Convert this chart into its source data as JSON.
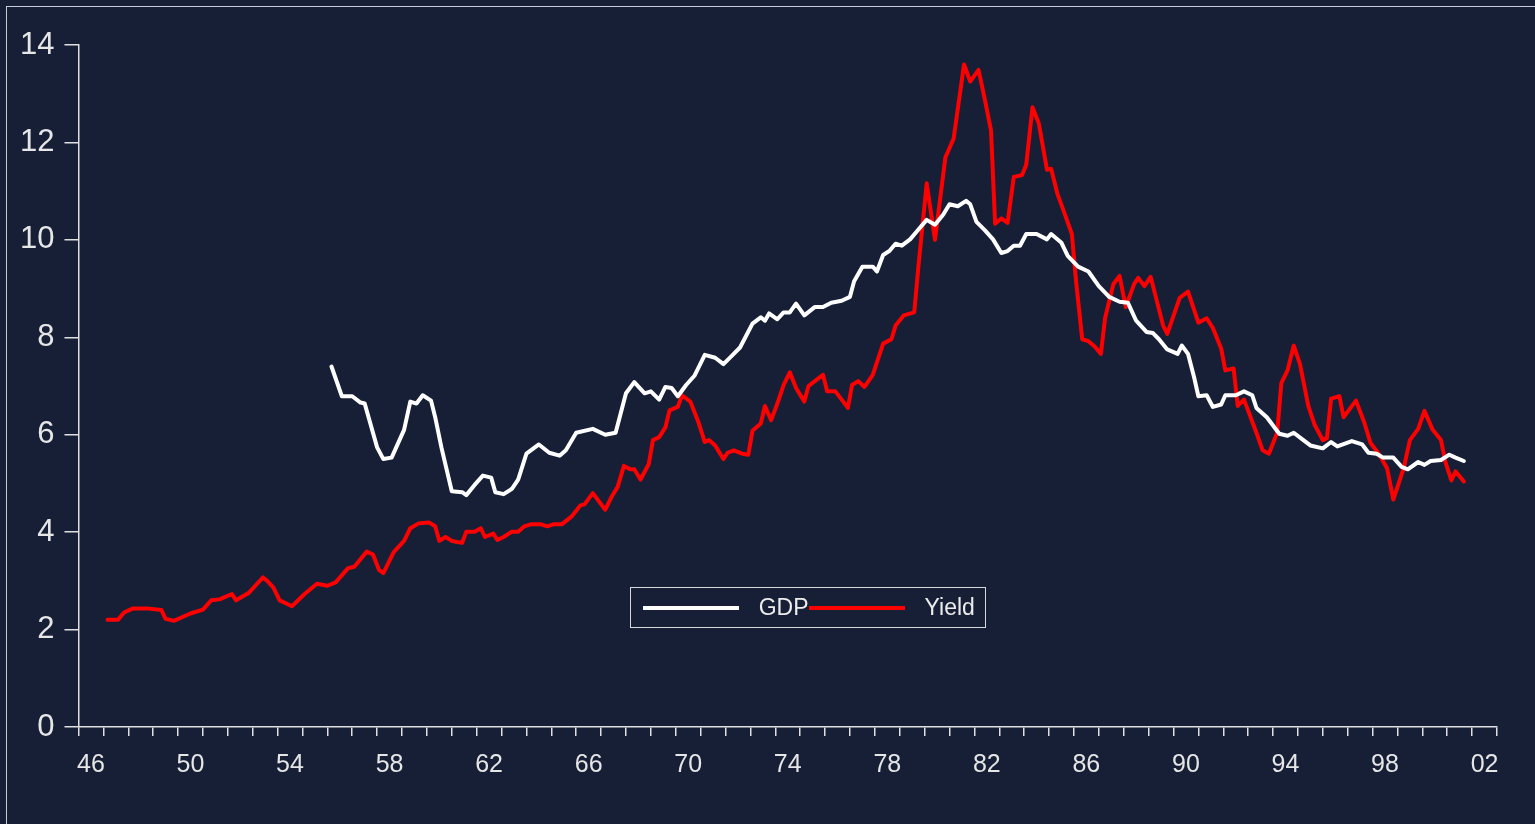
{
  "chart_data": {
    "type": "line",
    "xlim": [
      "1946",
      "2003"
    ],
    "ylim": [
      0,
      14
    ],
    "yticks": [
      0,
      2,
      4,
      6,
      8,
      10,
      12,
      14
    ],
    "xticks": [
      {
        "value": "1946",
        "label": null
      },
      {
        "value": "1947",
        "label": null
      },
      {
        "value": "1948",
        "label": null
      },
      {
        "value": "1949",
        "label": null
      },
      {
        "value": "1950",
        "label": null
      },
      {
        "value": "1951",
        "label": null
      },
      {
        "value": "1952",
        "label": null
      },
      {
        "value": "1953",
        "label": null
      },
      {
        "value": "1954",
        "label": null
      },
      {
        "value": "1955",
        "label": null
      },
      {
        "value": "1956",
        "label": null
      },
      {
        "value": "1957",
        "label": null
      },
      {
        "value": "1958",
        "label": null
      },
      {
        "value": "1959",
        "label": null
      },
      {
        "value": "1960",
        "label": null
      },
      {
        "value": "1961",
        "label": null
      },
      {
        "value": "1962",
        "label": null
      },
      {
        "value": "1963",
        "label": null
      },
      {
        "value": "1964",
        "label": null
      },
      {
        "value": "1965",
        "label": null
      },
      {
        "value": "1966",
        "label": null
      },
      {
        "value": "1967",
        "label": null
      },
      {
        "value": "1968",
        "label": null
      },
      {
        "value": "1969",
        "label": null
      },
      {
        "value": "1970",
        "label": null
      },
      {
        "value": "1971",
        "label": null
      },
      {
        "value": "1972",
        "label": null
      },
      {
        "value": "1973",
        "label": null
      },
      {
        "value": "1974",
        "label": null
      },
      {
        "value": "1975",
        "label": null
      },
      {
        "value": "1976",
        "label": null
      },
      {
        "value": "1977",
        "label": null
      },
      {
        "value": "1978",
        "label": null
      },
      {
        "value": "1979",
        "label": null
      },
      {
        "value": "1980",
        "label": null
      },
      {
        "value": "1981",
        "label": null
      },
      {
        "value": "1982",
        "label": null
      },
      {
        "value": "1983",
        "label": null
      },
      {
        "value": "1984",
        "label": null
      },
      {
        "value": "1985",
        "label": null
      },
      {
        "value": "1986",
        "label": null
      },
      {
        "value": "1987",
        "label": null
      },
      {
        "value": "1988",
        "label": null
      },
      {
        "value": "1989",
        "label": null
      },
      {
        "value": "1990",
        "label": null
      },
      {
        "value": "1991",
        "label": null
      },
      {
        "value": "1992",
        "label": null
      },
      {
        "value": "1993",
        "label": null
      },
      {
        "value": "1994",
        "label": null
      },
      {
        "value": "1995",
        "label": null
      },
      {
        "value": "1996",
        "label": null
      },
      {
        "value": "1997",
        "label": null
      },
      {
        "value": "1998",
        "label": null
      },
      {
        "value": "1999",
        "label": null
      },
      {
        "value": "2000",
        "label": null
      },
      {
        "value": "2001",
        "label": null
      },
      {
        "value": "2002",
        "label": null
      },
      {
        "value": "2003",
        "label": null
      },
      {
        "value": "1946-07",
        "label": "46"
      },
      {
        "value": "1950-07",
        "label": "50"
      },
      {
        "value": "1954-07",
        "label": "54"
      },
      {
        "value": "1958-07",
        "label": "58"
      },
      {
        "value": "1962-07",
        "label": "62"
      },
      {
        "value": "1966-07",
        "label": "66"
      },
      {
        "value": "1970-07",
        "label": "70"
      },
      {
        "value": "1974-07",
        "label": "74"
      },
      {
        "value": "1978-07",
        "label": "78"
      },
      {
        "value": "1982-07",
        "label": "82"
      },
      {
        "value": "1986-07",
        "label": "86"
      },
      {
        "value": "1990-07",
        "label": "90"
      },
      {
        "value": "1994-07",
        "label": "94"
      },
      {
        "value": "1998-07",
        "label": "98"
      },
      {
        "value": "2002-07",
        "label": "02"
      }
    ],
    "legend": "bottom",
    "marker": "none",
    "line_style": "solid",
    "series": [
      {
        "name": "GDP",
        "color": "#ffffff",
        "x": [
          "1956-03",
          "1956-08",
          "1957-01",
          "1957-05",
          "1957-07",
          "1958-01",
          "1958-04",
          "1958-08",
          "1959-02",
          "1959-05",
          "1959-08",
          "1959-11",
          "1960-03",
          "1960-05",
          "1960-08",
          "1961-01",
          "1961-06",
          "1961-08",
          "1961-12",
          "1962-04",
          "1962-08",
          "1962-10",
          "1963-02",
          "1963-06",
          "1963-09",
          "1964-01",
          "1964-07",
          "1964-12",
          "1965-05",
          "1965-08",
          "1966-01",
          "1966-09",
          "1967-03",
          "1967-08",
          "1968-01",
          "1968-05",
          "1968-10",
          "1969-01",
          "1969-05",
          "1969-08",
          "1969-11",
          "1970-02",
          "1970-06",
          "1970-10",
          "1971-03",
          "1971-08",
          "1971-12",
          "1972-04",
          "1972-08",
          "1973-02",
          "1973-06",
          "1973-08",
          "1973-10",
          "1974-02",
          "1974-05",
          "1974-08",
          "1974-11",
          "1975-03",
          "1975-08",
          "1975-12",
          "1976-04",
          "1976-09",
          "1977-01",
          "1977-03",
          "1977-07",
          "1977-12",
          "1978-02",
          "1978-05",
          "1978-08",
          "1978-11",
          "1979-02",
          "1979-06",
          "1979-09",
          "1980-02",
          "1980-06",
          "1980-10",
          "1981-01",
          "1981-05",
          "1981-09",
          "1981-11",
          "1982-02",
          "1982-06",
          "1982-10",
          "1983-02",
          "1983-05",
          "1983-08",
          "1983-11",
          "1984-02",
          "1984-07",
          "1984-12",
          "1985-02",
          "1985-07",
          "1985-10",
          "1986-03",
          "1986-08",
          "1987-01",
          "1987-06",
          "1987-11",
          "1988-03",
          "1988-07",
          "1988-12",
          "1989-03",
          "1989-06",
          "1989-10",
          "1990-03",
          "1990-05",
          "1990-08",
          "1990-11",
          "1991-01",
          "1991-05",
          "1991-08",
          "1991-12",
          "1992-02",
          "1992-07",
          "1992-11",
          "1993-03",
          "1993-05",
          "1993-10",
          "1994-01",
          "1994-04",
          "1994-08",
          "1994-11",
          "1995-03",
          "1995-07",
          "1996-01",
          "1996-05",
          "1996-08",
          "1997-03",
          "1997-08",
          "1997-11",
          "1998-03",
          "1998-06",
          "1998-11",
          "1999-03",
          "1999-06",
          "1999-11",
          "2000-02",
          "2000-05",
          "2000-10",
          "2001-02",
          "2001-05",
          "2001-09"
        ],
        "values": [
          7.4,
          6.79,
          6.79,
          6.66,
          6.64,
          5.74,
          5.5,
          5.53,
          6.1,
          6.68,
          6.64,
          6.81,
          6.7,
          6.36,
          5.74,
          4.84,
          4.82,
          4.76,
          4.97,
          5.16,
          5.12,
          4.82,
          4.78,
          4.89,
          5.08,
          5.61,
          5.8,
          5.63,
          5.57,
          5.68,
          6.04,
          6.12,
          6.0,
          6.04,
          6.85,
          7.08,
          6.85,
          6.89,
          6.72,
          6.98,
          6.96,
          6.79,
          7.02,
          7.21,
          7.64,
          7.58,
          7.45,
          7.62,
          7.79,
          8.28,
          8.41,
          8.34,
          8.49,
          8.37,
          8.51,
          8.51,
          8.69,
          8.45,
          8.62,
          8.62,
          8.71,
          8.75,
          8.83,
          9.15,
          9.45,
          9.45,
          9.35,
          9.69,
          9.77,
          9.92,
          9.88,
          10.01,
          10.16,
          10.41,
          10.31,
          10.52,
          10.73,
          10.69,
          10.8,
          10.73,
          10.37,
          10.2,
          10.01,
          9.73,
          9.77,
          9.88,
          9.88,
          10.12,
          10.12,
          10.01,
          10.12,
          9.94,
          9.67,
          9.45,
          9.35,
          9.05,
          8.83,
          8.73,
          8.71,
          8.34,
          8.11,
          8.09,
          7.96,
          7.75,
          7.66,
          7.83,
          7.66,
          7.17,
          6.79,
          6.81,
          6.57,
          6.62,
          6.81,
          6.81,
          6.89,
          6.81,
          6.55,
          6.36,
          6.19,
          6.02,
          5.98,
          6.04,
          5.91,
          5.78,
          5.72,
          5.85,
          5.76,
          5.87,
          5.8,
          5.63,
          5.61,
          5.53,
          5.53,
          5.34,
          5.29,
          5.44,
          5.38,
          5.46,
          5.48,
          5.59,
          5.53,
          5.46
        ]
      },
      {
        "name": "Yield",
        "color": "#ff0000",
        "x": [
          "1947-03",
          "1947-08",
          "1947-11",
          "1948-03",
          "1948-11",
          "1949-05",
          "1949-07",
          "1949-11",
          "1950-07",
          "1951-01",
          "1951-05",
          "1951-09",
          "1952-03",
          "1952-05",
          "1952-11",
          "1953-06",
          "1953-08",
          "1953-11",
          "1954-02",
          "1954-08",
          "1955-02",
          "1955-08",
          "1956-01",
          "1956-05",
          "1956-11",
          "1957-02",
          "1957-08",
          "1957-11",
          "1958-02",
          "1958-04",
          "1958-09",
          "1959-02",
          "1959-05",
          "1959-09",
          "1960-02",
          "1960-05",
          "1960-07",
          "1960-10",
          "1961-01",
          "1961-06",
          "1961-08",
          "1961-12",
          "1962-03",
          "1962-05",
          "1962-09",
          "1962-11",
          "1963-02",
          "1963-06",
          "1963-09",
          "1963-12",
          "1964-03",
          "1964-08",
          "1964-11",
          "1965-02",
          "1965-06",
          "1965-11",
          "1966-03",
          "1966-05",
          "1966-09",
          "1967-03",
          "1967-06",
          "1967-09",
          "1967-12",
          "1968-03",
          "1968-05",
          "1968-08",
          "1968-12",
          "1969-02",
          "1969-05",
          "1969-08",
          "1969-10",
          "1970-02",
          "1970-04",
          "1970-08",
          "1970-12",
          "1971-03",
          "1971-05",
          "1971-08",
          "1971-12",
          "1972-02",
          "1972-05",
          "1972-09",
          "1972-12",
          "1973-02",
          "1973-06",
          "1973-08",
          "1973-11",
          "1974-02",
          "1974-05",
          "1974-08",
          "1974-11",
          "1975-03",
          "1975-05",
          "1975-09",
          "1975-12",
          "1976-02",
          "1976-06",
          "1976-09",
          "1976-12",
          "1977-02",
          "1977-05",
          "1977-08",
          "1977-12",
          "1978-05",
          "1978-09",
          "1978-11",
          "1979-03",
          "1979-08",
          "1979-10",
          "1980-02",
          "1980-06",
          "1980-11",
          "1981-03",
          "1981-08",
          "1981-11",
          "1982-03",
          "1982-06",
          "1982-09",
          "1982-11",
          "1983-02",
          "1983-05",
          "1983-08",
          "1983-12",
          "1984-02",
          "1984-05",
          "1984-08",
          "1984-12",
          "1985-02",
          "1985-05",
          "1985-08",
          "1985-12",
          "1986-02",
          "1986-05",
          "1986-08",
          "1986-11",
          "1987-02",
          "1987-04",
          "1987-08",
          "1987-11",
          "1988-02",
          "1988-06",
          "1988-08",
          "1988-11",
          "1989-02",
          "1989-08",
          "1989-10",
          "1990-04",
          "1990-08",
          "1991-01",
          "1991-05",
          "1991-08",
          "1991-12",
          "1992-02",
          "1992-06",
          "1992-08",
          "1992-11",
          "1993-05",
          "1993-08",
          "1993-11",
          "1994-03",
          "1994-05",
          "1994-08",
          "1994-11",
          "1995-02",
          "1995-06",
          "1995-09",
          "1996-01",
          "1996-03",
          "1996-05",
          "1996-09",
          "1996-11",
          "1997-05",
          "1997-09",
          "1997-12",
          "1998-04",
          "1998-08",
          "1998-11",
          "1999-04",
          "1999-07",
          "1999-11",
          "2000-02",
          "2000-06",
          "2000-10",
          "2000-12",
          "2001-03",
          "2001-05",
          "2001-09"
        ],
        "values": [
          2.2,
          2.2,
          2.35,
          2.43,
          2.43,
          2.4,
          2.22,
          2.18,
          2.33,
          2.41,
          2.6,
          2.62,
          2.73,
          2.6,
          2.75,
          3.07,
          3.0,
          2.86,
          2.6,
          2.48,
          2.73,
          2.94,
          2.9,
          2.97,
          3.26,
          3.29,
          3.6,
          3.54,
          3.22,
          3.16,
          3.59,
          3.82,
          4.08,
          4.18,
          4.2,
          4.12,
          3.82,
          3.9,
          3.82,
          3.78,
          4.01,
          4.01,
          4.08,
          3.9,
          3.97,
          3.84,
          3.9,
          4.01,
          4.01,
          4.12,
          4.16,
          4.16,
          4.12,
          4.16,
          4.16,
          4.33,
          4.55,
          4.57,
          4.8,
          4.46,
          4.72,
          4.93,
          5.36,
          5.29,
          5.29,
          5.08,
          5.4,
          5.89,
          5.95,
          6.15,
          6.5,
          6.57,
          6.81,
          6.68,
          6.25,
          5.85,
          5.89,
          5.78,
          5.5,
          5.63,
          5.68,
          5.61,
          5.59,
          6.08,
          6.23,
          6.59,
          6.3,
          6.64,
          7.02,
          7.28,
          6.96,
          6.68,
          7.0,
          7.13,
          7.23,
          6.89,
          6.89,
          6.72,
          6.55,
          7.02,
          7.1,
          6.98,
          7.23,
          7.87,
          7.96,
          8.24,
          8.45,
          8.51,
          9.45,
          11.16,
          10.0,
          11.69,
          12.08,
          13.6,
          13.25,
          13.49,
          12.89,
          12.25,
          10.33,
          10.44,
          10.35,
          11.29,
          11.33,
          11.54,
          12.72,
          12.4,
          11.44,
          11.46,
          10.95,
          10.6,
          10.12,
          9.16,
          7.96,
          7.92,
          7.81,
          7.66,
          8.39,
          9.09,
          9.26,
          8.62,
          9.09,
          9.22,
          9.05,
          9.24,
          8.24,
          8.07,
          8.81,
          8.94,
          8.3,
          8.39,
          8.19,
          7.77,
          7.32,
          7.36,
          6.59,
          6.72,
          6.04,
          5.68,
          5.61,
          6.04,
          7.06,
          7.32,
          7.83,
          7.45,
          6.59,
          6.21,
          5.89,
          5.93,
          6.74,
          6.79,
          6.36,
          6.7,
          6.25,
          5.83,
          5.61,
          5.31,
          4.67,
          5.31,
          5.89,
          6.12,
          6.49,
          6.1,
          5.89,
          5.46,
          5.06,
          5.25,
          5.04
        ]
      }
    ]
  }
}
